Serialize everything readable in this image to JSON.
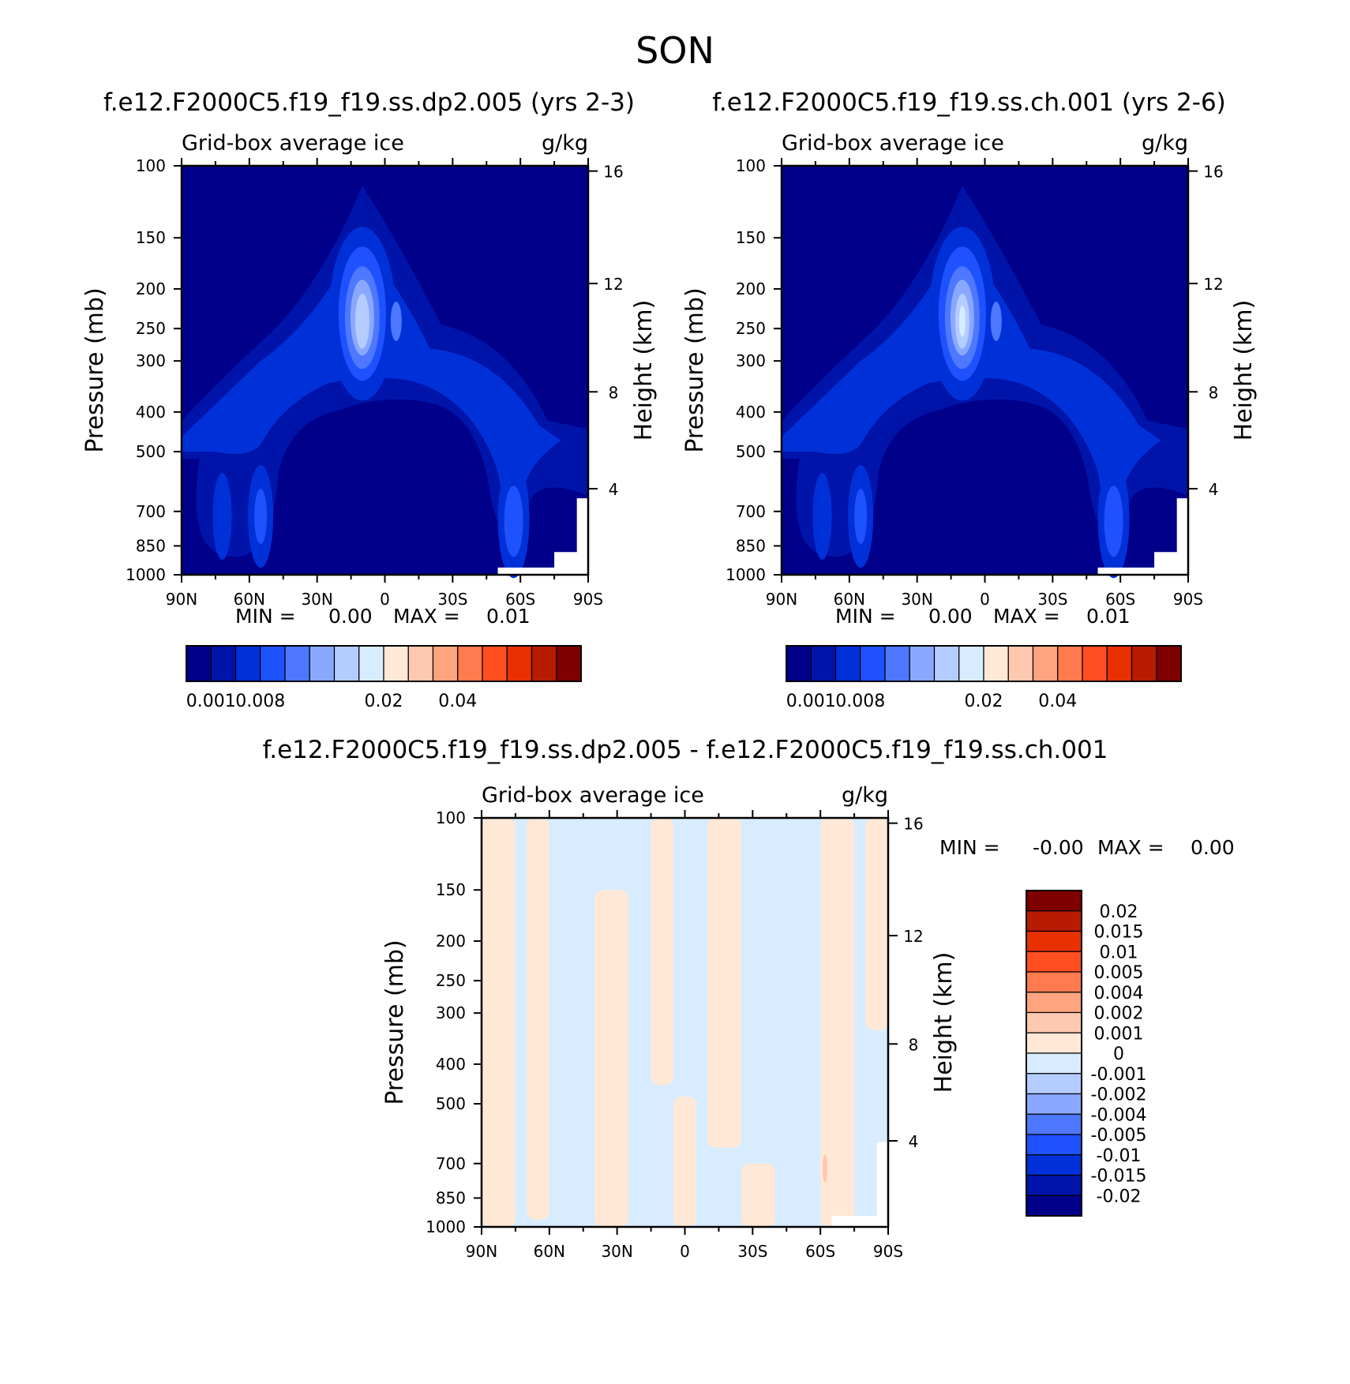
{
  "title": "SON",
  "colors": {
    "abs_levels": [
      "#00008b",
      "#0014aa",
      "#0030d8",
      "#1f52ff",
      "#4d78ff",
      "#8aa8ff",
      "#b4ccff",
      "#d8ecff",
      "#ffe8d6",
      "#ffc8b0",
      "#ffa47e",
      "#ff7a4e",
      "#ff4e20",
      "#e83000",
      "#b81c00",
      "#7f0000"
    ],
    "diff_levels": [
      "#7f0000",
      "#b81c00",
      "#e83000",
      "#ff4e20",
      "#ff7a4e",
      "#ffa47e",
      "#ffc8b0",
      "#ffe8d6",
      "#d8ecff",
      "#b4ccff",
      "#8aa8ff",
      "#4d78ff",
      "#1f52ff",
      "#0030d8",
      "#0014aa",
      "#00008b"
    ]
  },
  "chart_data": [
    {
      "type": "heatmap",
      "id": "left",
      "title": "f.e12.F2000C5.f19_f19.ss.dp2.005 (yrs 2-3)",
      "variable": "Grid-box average ice",
      "units": "g/kg",
      "xlabel": "",
      "ylabel": "Pressure (mb)",
      "y2label": "Height (km)",
      "x_ticks": [
        "90N",
        "60N",
        "30N",
        "0",
        "30S",
        "60S",
        "90S"
      ],
      "x_tick_values": [
        -90,
        -60,
        -30,
        0,
        30,
        60,
        90
      ],
      "y_ticks": [
        100,
        150,
        200,
        250,
        300,
        400,
        500,
        700,
        850,
        1000
      ],
      "y2_ticks": [
        {
          "km": 16,
          "p": 103
        },
        {
          "km": 12,
          "p": 194
        },
        {
          "km": 8,
          "p": 357
        },
        {
          "km": 4,
          "p": 616
        }
      ],
      "ylim": [
        100,
        1000
      ],
      "xlim": [
        -90,
        90
      ],
      "min_label": "MIN =",
      "min_value": "0.00",
      "max_label": "MAX =",
      "max_value": "0.01",
      "colorbar": {
        "orientation": "horizontal",
        "labels": [
          "0.001",
          "0.008",
          "0.02",
          "0.04"
        ]
      }
    },
    {
      "type": "heatmap",
      "id": "right",
      "title": "f.e12.F2000C5.f19_f19.ss.ch.001 (yrs 2-6)",
      "variable": "Grid-box average ice",
      "units": "g/kg",
      "xlabel": "",
      "ylabel": "Pressure (mb)",
      "y2label": "Height (km)",
      "x_ticks": [
        "90N",
        "60N",
        "30N",
        "0",
        "30S",
        "60S",
        "90S"
      ],
      "x_tick_values": [
        -90,
        -60,
        -30,
        0,
        30,
        60,
        90
      ],
      "y_ticks": [
        100,
        150,
        200,
        250,
        300,
        400,
        500,
        700,
        850,
        1000
      ],
      "y2_ticks": [
        {
          "km": 16,
          "p": 103
        },
        {
          "km": 12,
          "p": 194
        },
        {
          "km": 8,
          "p": 357
        },
        {
          "km": 4,
          "p": 616
        }
      ],
      "ylim": [
        100,
        1000
      ],
      "xlim": [
        -90,
        90
      ],
      "min_label": "MIN =",
      "min_value": "0.00",
      "max_label": "MAX =",
      "max_value": "0.01",
      "colorbar": {
        "orientation": "horizontal",
        "labels": [
          "0.001",
          "0.008",
          "0.02",
          "0.04"
        ]
      }
    },
    {
      "type": "heatmap",
      "id": "diff",
      "title": "f.e12.F2000C5.f19_f19.ss.dp2.005 - f.e12.F2000C5.f19_f19.ss.ch.001",
      "variable": "Grid-box average ice",
      "units": "g/kg",
      "xlabel": "",
      "ylabel": "Pressure (mb)",
      "y2label": "Height (km)",
      "x_ticks": [
        "90N",
        "60N",
        "30N",
        "0",
        "30S",
        "60S",
        "90S"
      ],
      "x_tick_values": [
        -90,
        -60,
        -30,
        0,
        30,
        60,
        90
      ],
      "y_ticks": [
        100,
        150,
        200,
        250,
        300,
        400,
        500,
        700,
        850,
        1000
      ],
      "y2_ticks": [
        {
          "km": 16,
          "p": 103
        },
        {
          "km": 12,
          "p": 194
        },
        {
          "km": 8,
          "p": 357
        },
        {
          "km": 4,
          "p": 616
        }
      ],
      "ylim": [
        100,
        1000
      ],
      "xlim": [
        -90,
        90
      ],
      "min_label": "MIN =",
      "min_value": "-0.00",
      "max_label": "MAX =",
      "max_value": "0.00",
      "colorbar": {
        "orientation": "vertical",
        "labels": [
          "0.02",
          "0.015",
          "0.01",
          "0.005",
          "0.004",
          "0.002",
          "0.001",
          "0",
          "-0.001",
          "-0.002",
          "-0.004",
          "-0.005",
          "-0.01",
          "-0.015",
          "-0.02"
        ]
      }
    }
  ]
}
